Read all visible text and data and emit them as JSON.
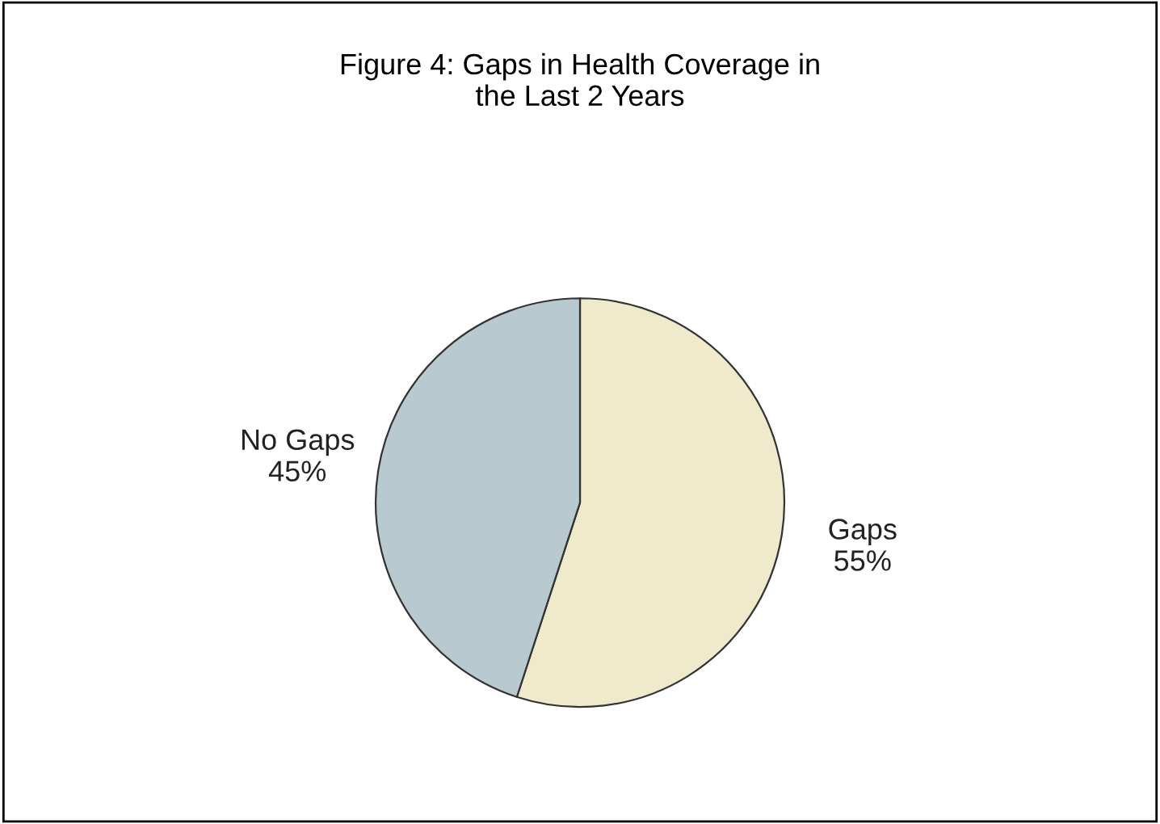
{
  "chart_data": {
    "type": "pie",
    "title": "Figure 4: Gaps in Health Coverage in\nthe Last 2 Years",
    "categories": [
      "Gaps",
      "No Gaps"
    ],
    "values": [
      55,
      45
    ],
    "colors": [
      "#efeacb",
      "#b8cad0"
    ],
    "value_labels": [
      "55%",
      "45%"
    ]
  }
}
